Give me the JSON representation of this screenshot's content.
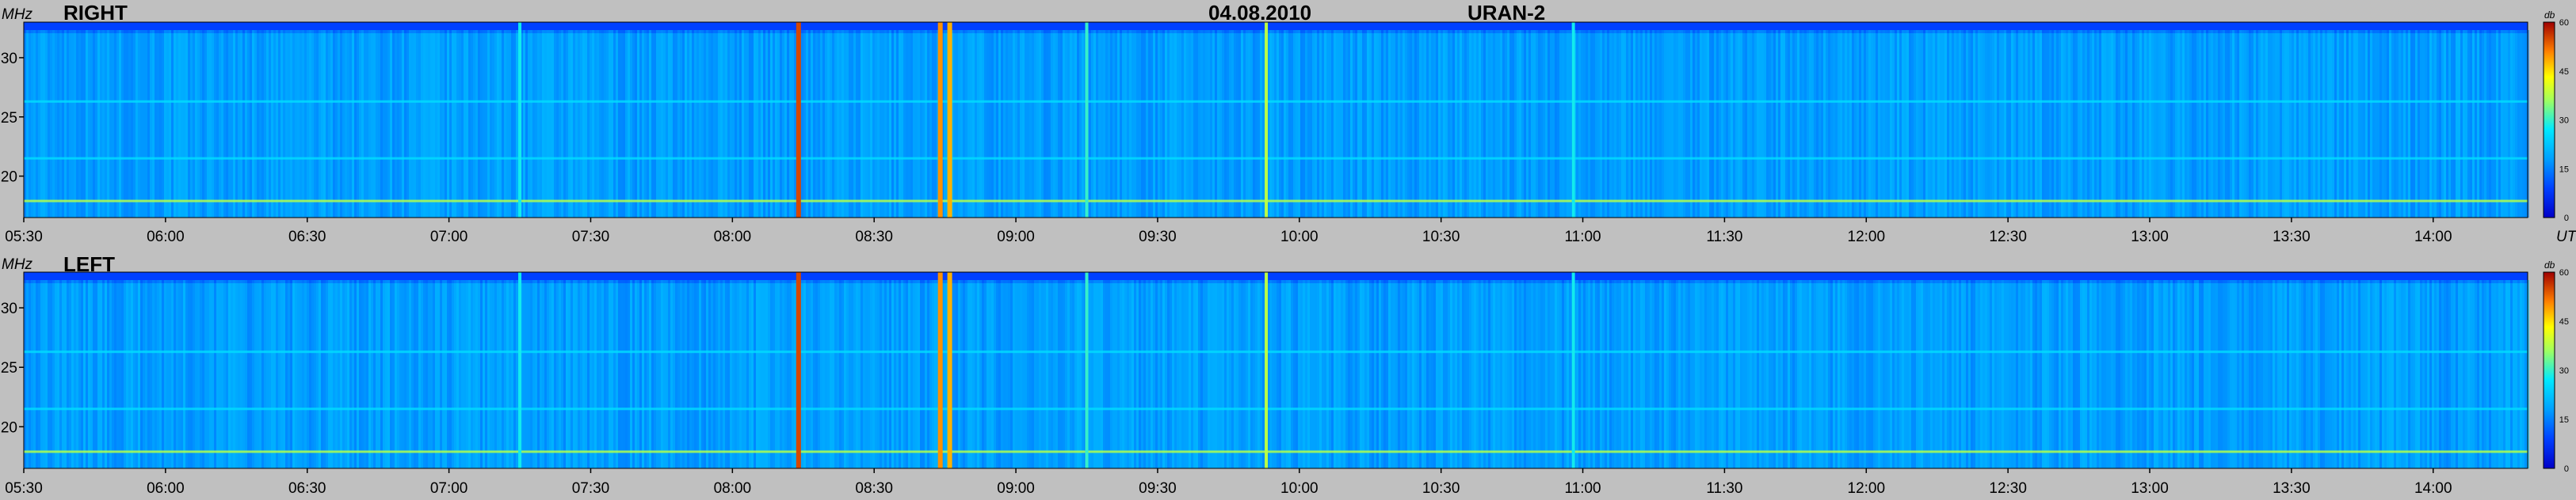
{
  "header": {
    "date": "04.08.2010",
    "instrument": "URAN-2"
  },
  "chart_data": [
    {
      "type": "heatmap",
      "title": "RIGHT",
      "ylabel": "MHz",
      "xlabel": "UT",
      "x_range": [
        "05:30",
        "14:20"
      ],
      "ylim": [
        16.5,
        33
      ],
      "x_ticks": [
        "05:30",
        "06:00",
        "06:30",
        "07:00",
        "07:30",
        "08:00",
        "08:30",
        "09:00",
        "09:30",
        "10:00",
        "10:30",
        "11:00",
        "11:30",
        "12:00",
        "12:30",
        "13:00",
        "13:30",
        "14:00"
      ],
      "y_ticks": [
        20,
        25,
        30
      ],
      "colorbar": {
        "label": "db",
        "range": [
          0,
          60
        ],
        "ticks": [
          0,
          15,
          30,
          45,
          60
        ]
      },
      "bursts": [
        {
          "time": "08:14",
          "intensity_db": 55
        },
        {
          "time": "08:44",
          "intensity_db": 50
        },
        {
          "time": "08:46",
          "intensity_db": 48
        },
        {
          "time": "09:53",
          "intensity_db": 38
        },
        {
          "time": "09:15",
          "intensity_db": 30
        },
        {
          "time": "07:15",
          "intensity_db": 28
        },
        {
          "time": "10:58",
          "intensity_db": 28
        }
      ],
      "interference_lines_mhz": [
        17.9,
        21.5,
        26.3
      ]
    },
    {
      "type": "heatmap",
      "title": "LEFT",
      "ylabel": "MHz",
      "xlabel": "",
      "x_range": [
        "05:30",
        "14:20"
      ],
      "ylim": [
        16.5,
        33
      ],
      "x_ticks": [
        "05:30",
        "06:00",
        "06:30",
        "07:00",
        "07:30",
        "08:00",
        "08:30",
        "09:00",
        "09:30",
        "10:00",
        "10:30",
        "11:00",
        "11:30",
        "12:00",
        "12:30",
        "13:00",
        "13:30",
        "14:00"
      ],
      "y_ticks": [
        20,
        25,
        30
      ],
      "colorbar": {
        "label": "db",
        "range": [
          0,
          60
        ],
        "ticks": [
          0,
          15,
          30,
          45,
          60
        ]
      },
      "bursts": [
        {
          "time": "08:14",
          "intensity_db": 55
        },
        {
          "time": "08:44",
          "intensity_db": 50
        },
        {
          "time": "08:46",
          "intensity_db": 48
        },
        {
          "time": "09:53",
          "intensity_db": 38
        },
        {
          "time": "09:15",
          "intensity_db": 30
        },
        {
          "time": "07:15",
          "intensity_db": 28
        },
        {
          "time": "10:58",
          "intensity_db": 28
        }
      ],
      "interference_lines_mhz": [
        17.9,
        21.5,
        26.3
      ]
    }
  ]
}
